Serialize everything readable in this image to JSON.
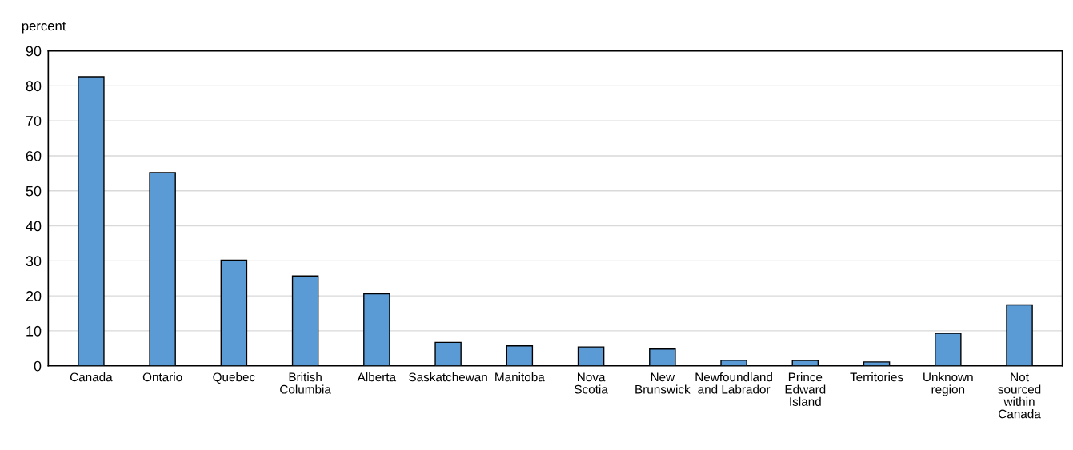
{
  "chart_data": {
    "type": "bar",
    "ylabel": "percent",
    "categories": [
      "Canada",
      "Ontario",
      "Quebec",
      "British\nColumbia",
      "Alberta",
      "Saskatchewan",
      "Manitoba",
      "Nova\nScotia",
      "New\nBrunswick",
      "Newfoundland\nand Labrador",
      "Prince\nEdward\nIsland",
      "Territories",
      "Unknown\nregion",
      "Not\nsourced\nwithin\nCanada"
    ],
    "values": [
      82.6,
      55.2,
      30.2,
      25.7,
      20.6,
      6.7,
      5.7,
      5.4,
      4.8,
      1.6,
      1.5,
      1.1,
      9.3,
      17.4
    ],
    "color": "#5b9bd5",
    "ylim": [
      0,
      90
    ],
    "yticks": [
      0,
      10,
      20,
      30,
      40,
      50,
      60,
      70,
      80,
      90
    ],
    "grid": "y",
    "legend": false
  }
}
